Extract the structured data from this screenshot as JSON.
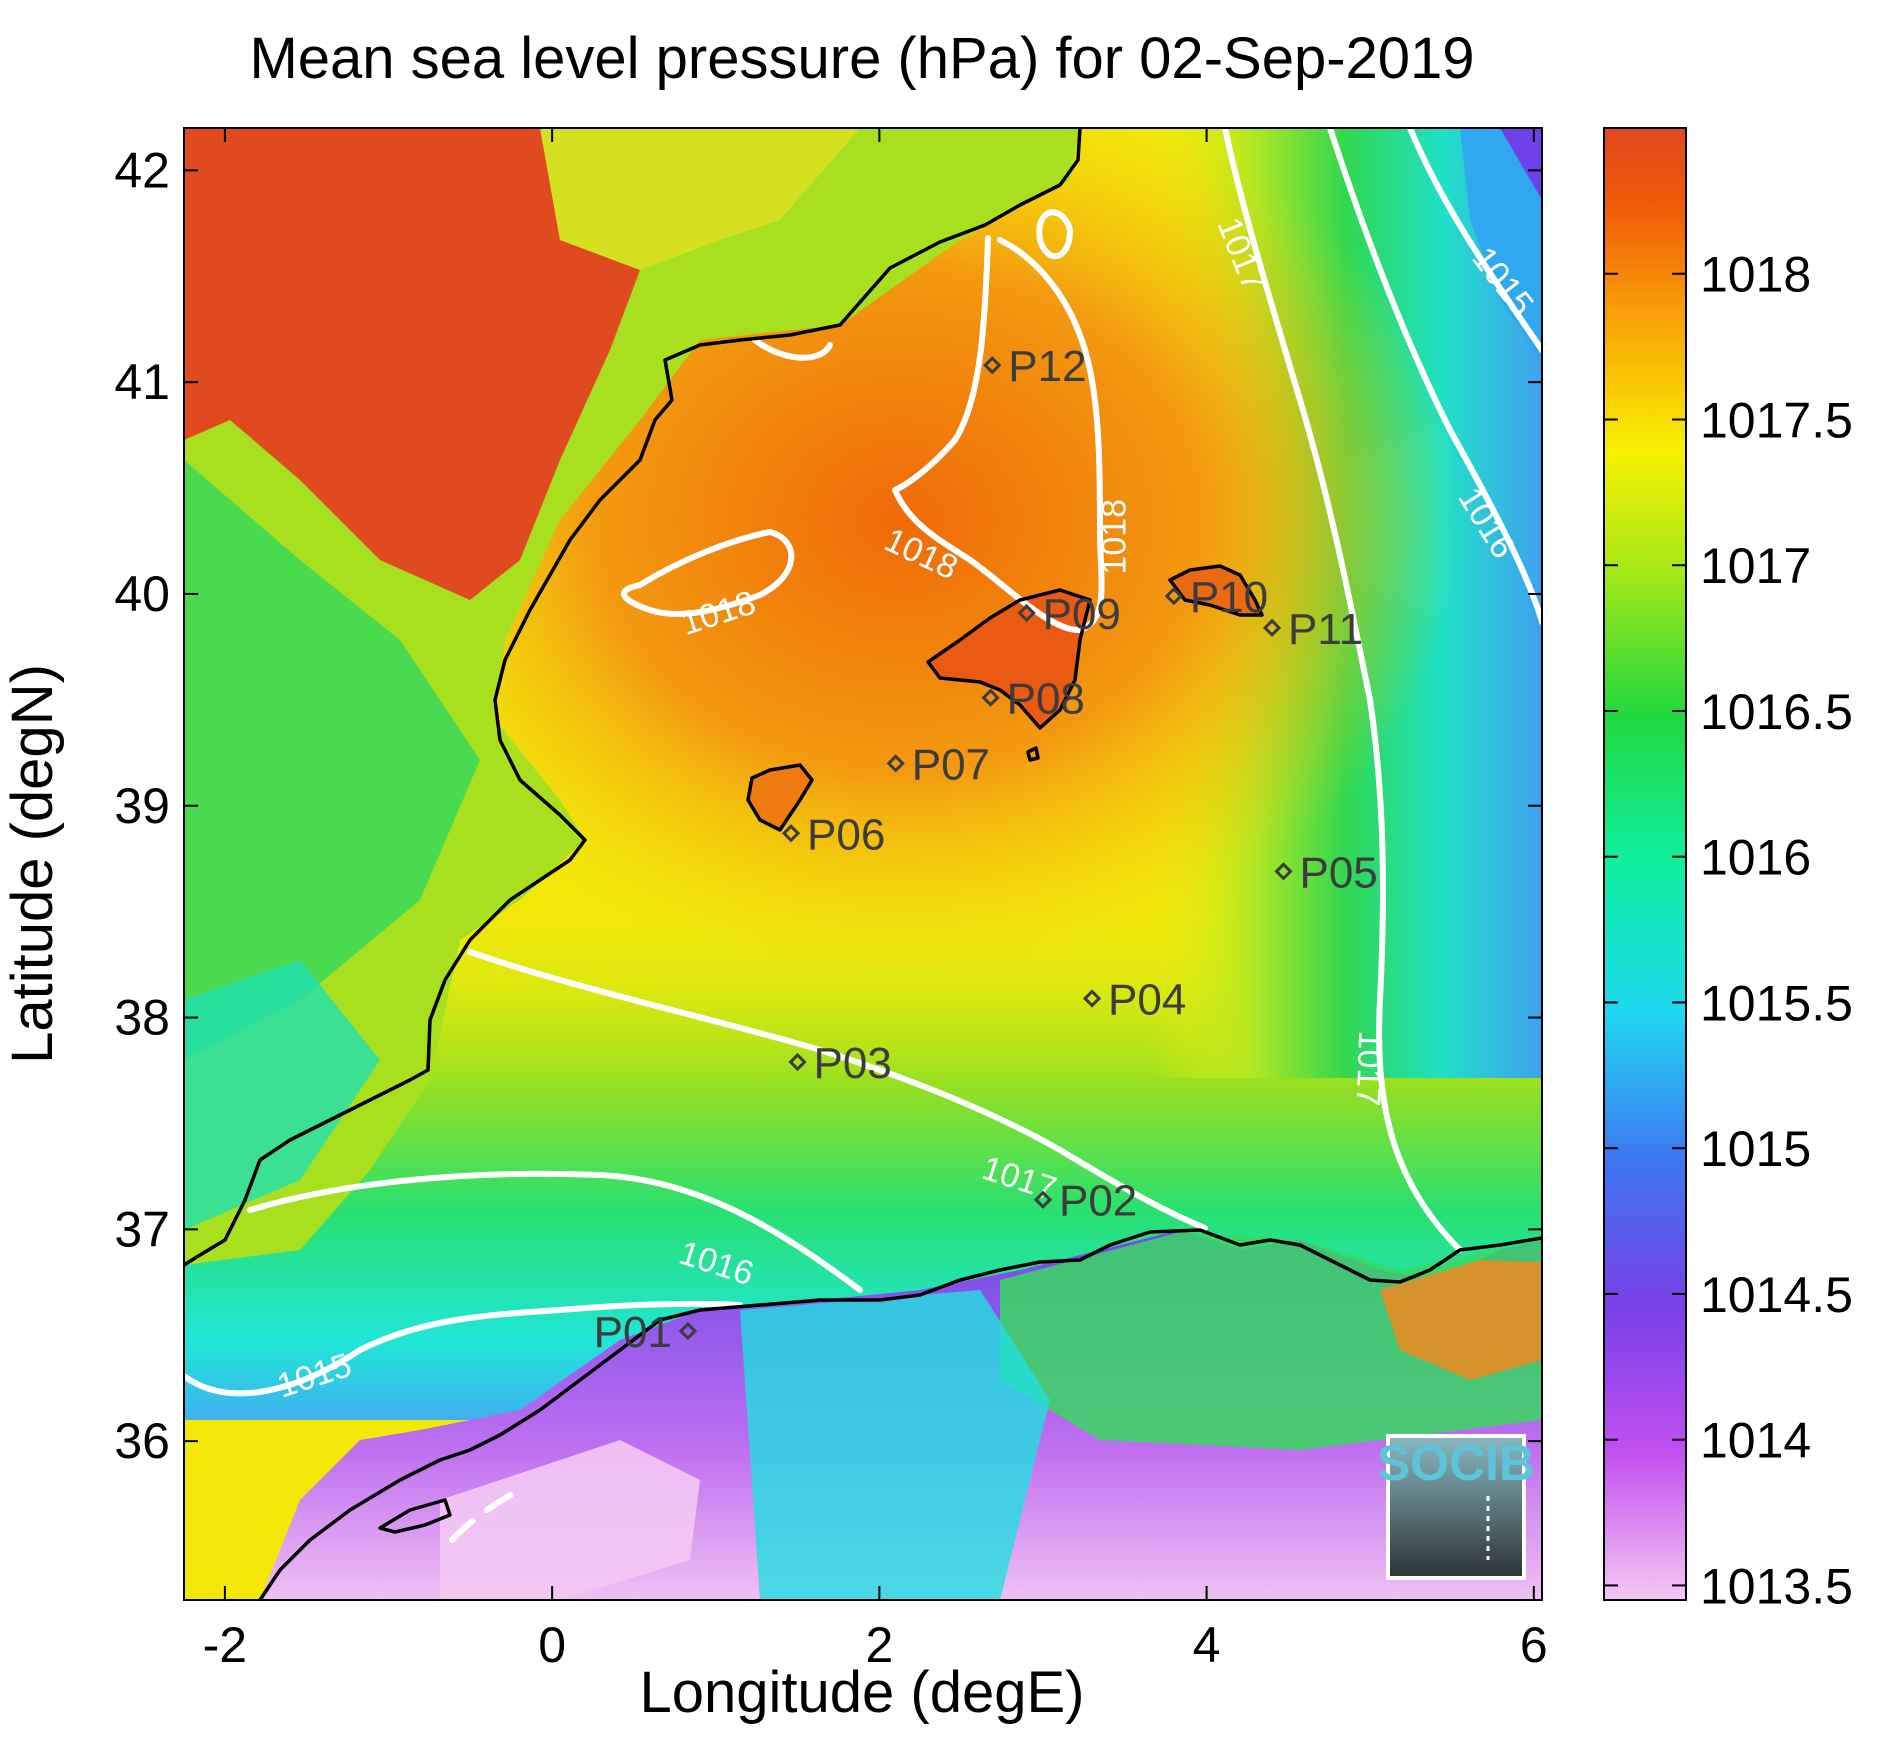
{
  "title": "Mean sea level pressure (hPa) for 02-Sep-2019",
  "xlabel": "Longitude (degE)",
  "ylabel": "Latitude (degN)",
  "x_ticks": [
    "-2",
    "0",
    "2",
    "4",
    "6"
  ],
  "y_ticks": [
    "42",
    "41",
    "40",
    "39",
    "38",
    "37",
    "36"
  ],
  "colorbar_ticks": [
    "1018",
    "1017.5",
    "1017",
    "1016.5",
    "1016",
    "1015.5",
    "1015",
    "1014.5",
    "1014",
    "1013.5"
  ],
  "logo_text": "SOCIB",
  "map_extent": {
    "lon_min": -2.25,
    "lon_max": 6.05,
    "lat_min": 35.25,
    "lat_max": 42.2
  },
  "colorbar_range": [
    1013.45,
    1018.5
  ],
  "colors": {
    "land_high": "#e04a1f",
    "sea_high": "#f07a10",
    "sea_mid": "#f8e000",
    "sea_low": "#20d840",
    "cyan": "#20e8d8",
    "blue_violet": "#7040e8",
    "pink": "#f0c0f0",
    "contour": "#ffffff",
    "coastline": "#000000",
    "point_marker": "#3c3c3c"
  },
  "stations": [
    {
      "label": "P01",
      "lon": 0.83,
      "lat": 36.52
    },
    {
      "label": "P02",
      "lon": 3.0,
      "lat": 37.14
    },
    {
      "label": "P03",
      "lon": 1.5,
      "lat": 37.79
    },
    {
      "label": "P04",
      "lon": 3.3,
      "lat": 38.09
    },
    {
      "label": "P05",
      "lon": 4.47,
      "lat": 38.69
    },
    {
      "label": "P06",
      "lon": 1.46,
      "lat": 38.87
    },
    {
      "label": "P07",
      "lon": 2.1,
      "lat": 39.2
    },
    {
      "label": "P08",
      "lon": 2.68,
      "lat": 39.51
    },
    {
      "label": "P09",
      "lon": 2.9,
      "lat": 39.91
    },
    {
      "label": "P10",
      "lon": 3.8,
      "lat": 39.99
    },
    {
      "label": "P11",
      "lon": 4.4,
      "lat": 39.84
    },
    {
      "label": "P12",
      "lon": 2.69,
      "lat": 41.08
    }
  ],
  "contour_labels": [
    {
      "text": "1018",
      "lon": 2.25,
      "lat": 40.18,
      "angle": 25
    },
    {
      "text": "1018",
      "lon": 3.45,
      "lat": 40.27,
      "angle": -90
    },
    {
      "text": "1018",
      "lon": 1.02,
      "lat": 39.9,
      "angle": -18
    },
    {
      "text": "1017",
      "lon": 4.2,
      "lat": 41.6,
      "angle": 68
    },
    {
      "text": "1017",
      "lon": 4.98,
      "lat": 37.76,
      "angle": 92
    },
    {
      "text": "1017",
      "lon": 2.85,
      "lat": 37.23,
      "angle": 18
    },
    {
      "text": "1016",
      "lon": 5.7,
      "lat": 40.33,
      "angle": 58
    },
    {
      "text": "1016",
      "lon": 1.0,
      "lat": 36.83,
      "angle": 18
    },
    {
      "text": "1015",
      "lon": 5.8,
      "lat": 41.47,
      "angle": 52
    },
    {
      "text": "1015",
      "lon": -1.45,
      "lat": 36.3,
      "angle": -18
    }
  ]
}
